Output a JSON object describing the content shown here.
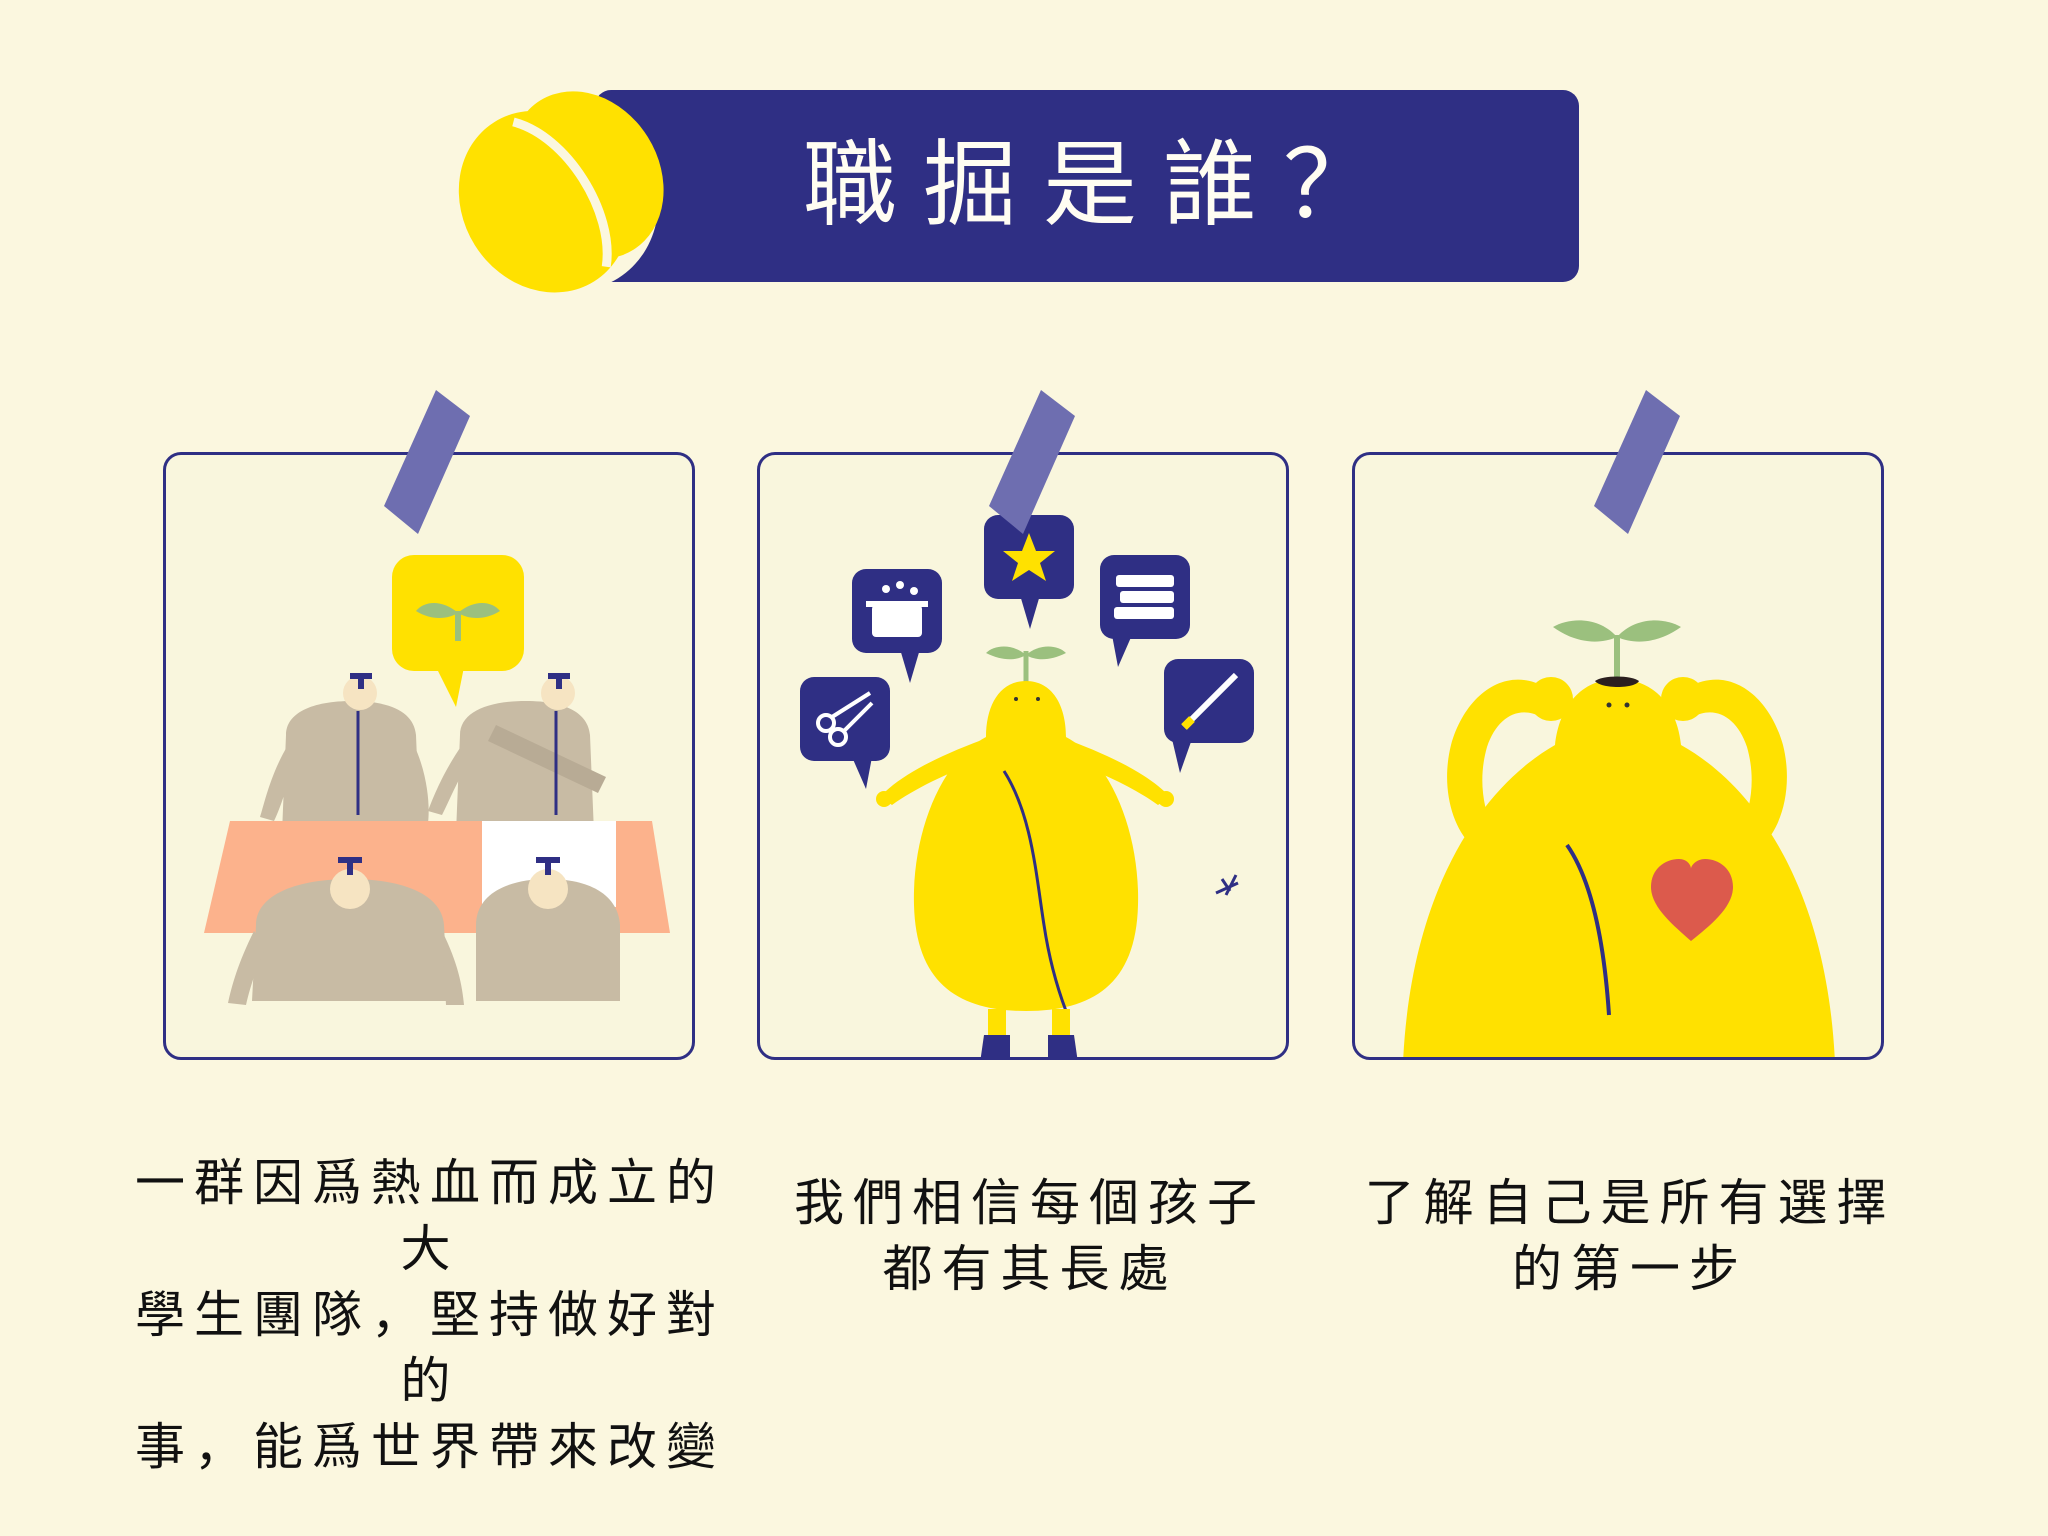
{
  "title": "職掘是誰？",
  "panels": [
    {
      "caption_lines": [
        "一群因爲熱血而成立的大",
        "學生團隊，堅持做好對的",
        "事，能爲世界帶來改變"
      ],
      "scene": "team-at-table"
    },
    {
      "caption_lines": [
        "我們相信每個孩子",
        "都有其長處"
      ],
      "scene": "bean-with-icons",
      "icons": [
        "scissors-icon",
        "pot-icon",
        "star-icon",
        "books-icon",
        "paintbrush-icon"
      ]
    },
    {
      "caption_lines": [
        "了解自己是所有選擇",
        "的第一步"
      ],
      "scene": "bean-with-heart"
    }
  ],
  "colors": {
    "background": "#fbf7df",
    "navy": "#2f2f84",
    "yellow": "#ffe100",
    "tape": "#6e6eb0",
    "heart": "#dc5a4c",
    "sprout": "#9bc07e"
  }
}
